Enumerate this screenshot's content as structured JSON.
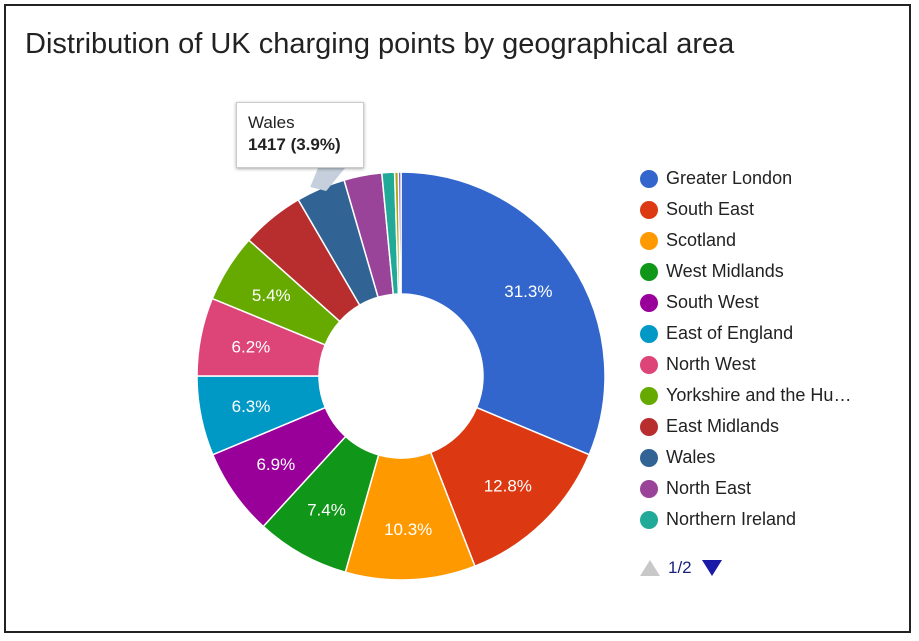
{
  "chart_data": {
    "type": "pie",
    "donut": true,
    "title": "Distribution of UK charging points by geographical area",
    "slices": [
      {
        "name": "Greater London",
        "percent": 31.3,
        "label": "31.3%",
        "color": "#3366cc"
      },
      {
        "name": "South East",
        "percent": 12.8,
        "label": "12.8%",
        "color": "#dc3912"
      },
      {
        "name": "Scotland",
        "percent": 10.3,
        "label": "10.3%",
        "color": "#ff9900"
      },
      {
        "name": "West Midlands",
        "percent": 7.4,
        "label": "7.4%",
        "color": "#109618"
      },
      {
        "name": "South West",
        "percent": 6.9,
        "label": "6.9%",
        "color": "#990099"
      },
      {
        "name": "East of England",
        "percent": 6.3,
        "label": "6.3%",
        "color": "#0099c6"
      },
      {
        "name": "North West",
        "percent": 6.2,
        "label": "6.2%",
        "color": "#dd4477"
      },
      {
        "name": "Yorkshire and the Humber",
        "percent": 5.4,
        "label": "5.4%",
        "color": "#66aa00"
      },
      {
        "name": "East Midlands",
        "percent": 5.0,
        "label": "",
        "color": "#b82e2e"
      },
      {
        "name": "Wales",
        "percent": 3.9,
        "label": "",
        "color": "#316395"
      },
      {
        "name": "North East",
        "percent": 3.0,
        "label": "",
        "color": "#994499"
      },
      {
        "name": "Northern Ireland",
        "percent": 1.0,
        "label": "",
        "color": "#22aa99"
      },
      {
        "name": "",
        "percent": 0.3,
        "label": "",
        "color": "#aaaa11"
      },
      {
        "name": "",
        "percent": 0.2,
        "label": "",
        "color": "#6633cc"
      }
    ],
    "legend_position": "right",
    "highlighted": "Wales"
  },
  "legend": {
    "items": [
      {
        "label": "Greater London",
        "color": "#3366cc"
      },
      {
        "label": "South East",
        "color": "#dc3912"
      },
      {
        "label": "Scotland",
        "color": "#ff9900"
      },
      {
        "label": "West Midlands",
        "color": "#109618"
      },
      {
        "label": "South West",
        "color": "#990099"
      },
      {
        "label": "East of England",
        "color": "#0099c6"
      },
      {
        "label": "North West",
        "color": "#dd4477"
      },
      {
        "label": "Yorkshire and the Hu…",
        "color": "#66aa00"
      },
      {
        "label": "East Midlands",
        "color": "#b82e2e"
      },
      {
        "label": "Wales",
        "color": "#316395"
      },
      {
        "label": "North East",
        "color": "#994499"
      },
      {
        "label": "Northern Ireland",
        "color": "#22aa99"
      }
    ],
    "page_text": "1/2",
    "prev_icon": "triangle-up-icon",
    "next_icon": "triangle-down-icon"
  },
  "tooltip": {
    "name": "Wales",
    "value": "1417",
    "percent": "(3.9%)"
  }
}
